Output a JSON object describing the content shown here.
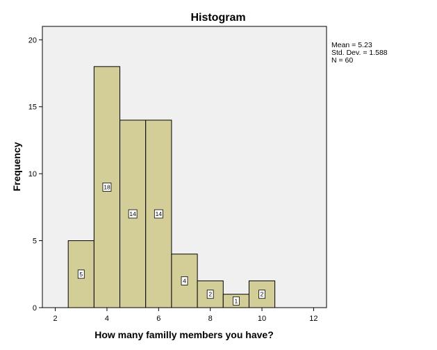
{
  "chart_data": {
    "type": "bar",
    "title": "Histogram",
    "xlabel": "How many familly members you have?",
    "ylabel": "Frequency",
    "xlim": [
      1.5,
      12.5
    ],
    "ylim": [
      0,
      21
    ],
    "x_ticks": [
      "2",
      "4",
      "6",
      "8",
      "10",
      "12"
    ],
    "y_ticks": [
      "0",
      "5",
      "10",
      "15",
      "20"
    ],
    "bin_width": 1,
    "bins": [
      {
        "x": 3,
        "value": 5,
        "label": "5"
      },
      {
        "x": 4,
        "value": 18,
        "label": "18"
      },
      {
        "x": 5,
        "value": 14,
        "label": "14"
      },
      {
        "x": 6,
        "value": 14,
        "label": "14"
      },
      {
        "x": 7,
        "value": 4,
        "label": "4"
      },
      {
        "x": 8,
        "value": 2,
        "label": "2"
      },
      {
        "x": 9,
        "value": 1,
        "label": "1"
      },
      {
        "x": 10,
        "value": 2,
        "label": "2"
      }
    ],
    "stats": {
      "mean": "Mean = 5.23",
      "std_dev": "Std. Dev. = 1.588",
      "n": "N = 60"
    },
    "colors": {
      "bar_fill": "#d3ce98",
      "bar_stroke": "#000000",
      "plot_background": "#f0f0f0"
    },
    "grid": false
  }
}
